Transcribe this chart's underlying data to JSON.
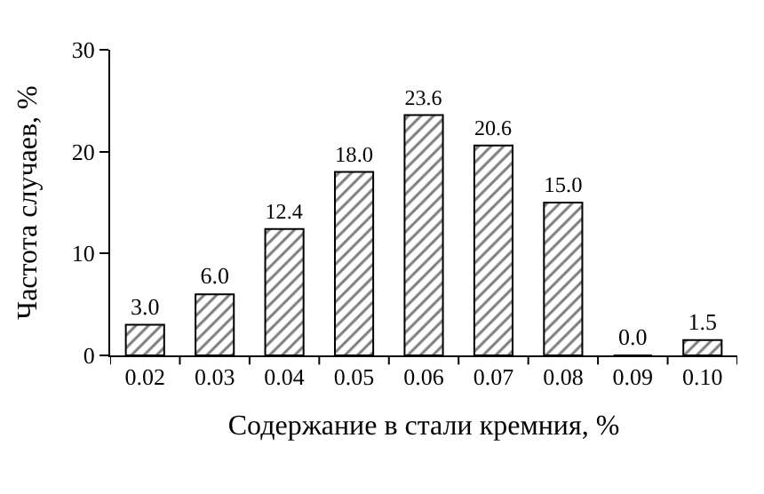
{
  "chart_data": {
    "type": "bar",
    "xlabel": "Содержание в стали кремния, %",
    "ylabel": "Частота случаев, %",
    "categories": [
      "0.02",
      "0.03",
      "0.04",
      "0.05",
      "0.06",
      "0.07",
      "0.08",
      "0.09",
      "0.10"
    ],
    "values": [
      3.0,
      6.0,
      12.4,
      18.0,
      23.6,
      20.6,
      15.0,
      0.0,
      1.5
    ],
    "value_labels": [
      "3.0",
      "6.0",
      "12.4",
      "18.0",
      "23.6",
      "20.6",
      "15.0",
      "0.0",
      "1.5"
    ],
    "color": "#000000",
    "ylim": [
      0,
      30
    ],
    "yticks": [
      0,
      10,
      20,
      30
    ]
  }
}
